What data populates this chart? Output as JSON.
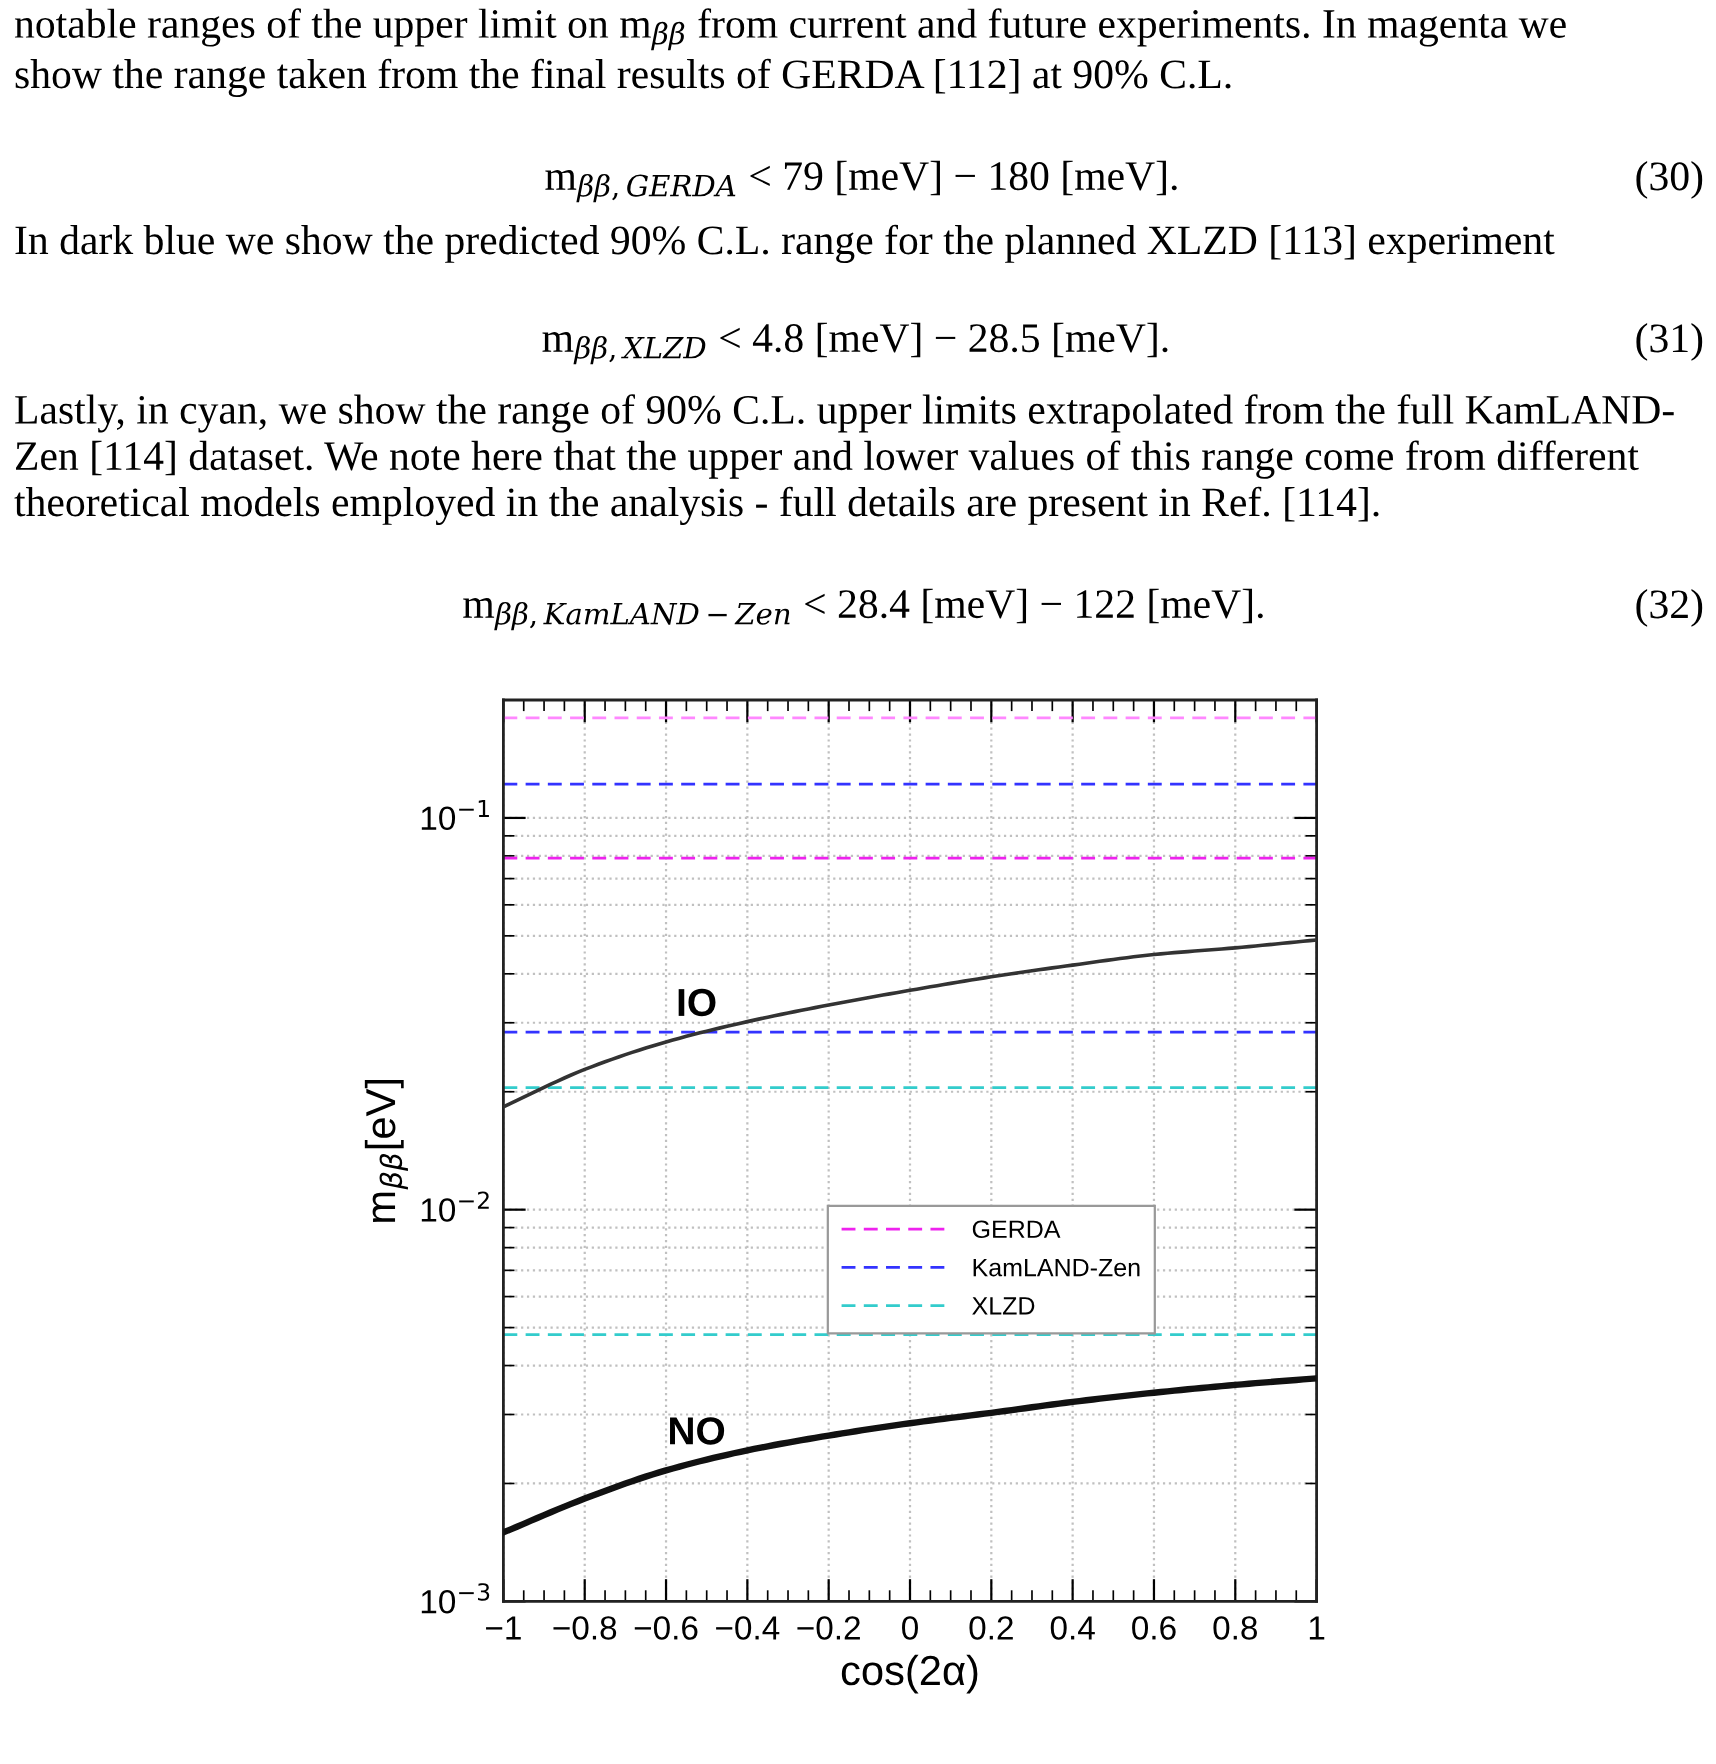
{
  "chart_data": {
    "type": "line",
    "xlabel": "cos(2α)",
    "ylabel": "m$_{ββ}$[eV]",
    "x": [
      -1,
      -0.8,
      -0.6,
      -0.4,
      -0.2,
      0,
      0.2,
      0.4,
      0.6,
      0.8,
      1
    ],
    "series": [
      {
        "name": "IO",
        "color": "#333333",
        "values": [
          0.0183,
          0.0228,
          0.0268,
          0.0302,
          0.0333,
          0.0363,
          0.0393,
          0.0421,
          0.0448,
          0.0466,
          0.0488
        ]
      },
      {
        "name": "NO",
        "color": "#111111",
        "values": [
          0.0015,
          0.00183,
          0.00216,
          0.00243,
          0.00265,
          0.00285,
          0.00303,
          0.00323,
          0.00341,
          0.00357,
          0.00371
        ]
      }
    ],
    "log": "y",
    "xlim": [
      -1,
      1
    ],
    "ylim": [
      0.001,
      0.2
    ],
    "xticks": [
      {
        "value": -1,
        "label": "−1"
      },
      {
        "value": -0.8,
        "label": "−0.8"
      },
      {
        "value": -0.6,
        "label": "−0.6"
      },
      {
        "value": -0.4,
        "label": "−0.4"
      },
      {
        "value": -0.2,
        "label": "−0.2"
      },
      0,
      0.2,
      0.4,
      0.6,
      0.8,
      1
    ],
    "yticks": [
      {
        "value": 0.001,
        "label": "10$^{−3}$"
      },
      {
        "value": 0.01,
        "label": "10$^{−2}$"
      },
      {
        "value": 0.1,
        "label": "10$^{−1}$"
      }
    ],
    "ref_lines": [
      {
        "axis": "y",
        "value": 0.079,
        "label": "GERDA",
        "color": "#ee22ee",
        "line_style": "dashed"
      },
      {
        "axis": "y",
        "value": 0.18,
        "color": "#ff88ff",
        "line_style": "dashed"
      },
      {
        "axis": "y",
        "value": 0.0284,
        "label": "KamLAND-Zen",
        "color": "#3333ff",
        "line_style": "dashed"
      },
      {
        "axis": "y",
        "value": 0.122,
        "color": "#3333ff",
        "line_style": "dashed"
      },
      {
        "axis": "y",
        "value": 0.0048,
        "label": "XLZD",
        "color": "#33cccc",
        "line_style": "dashed"
      },
      {
        "axis": "y",
        "value": 0.0205,
        "color": "#33cccc",
        "line_style": "dashed"
      }
    ],
    "grid": true,
    "legend": "center",
    "annotations": [
      "notable ranges of the upper limit on m$_{ββ}$ from current and future experiments. In magenta we\nshow the range taken from the final results of GERDA [112] at 90% C.L.",
      "m$_{ββ,GERDA}$ < 79 [meV] − 180 [meV].",
      "(30)",
      "In dark blue we show the predicted 90% C.L. range for the planned XLZD [113] experiment",
      "m$_{ββ,XLZD}$ < 4.8 [meV] − 28.5 [meV].",
      "(31)",
      "Lastly, in cyan, we show the range of 90% C.L. upper limits extrapolated from the full KamLAND-\nZen [114] dataset. We note here that the upper and lower values of this range come from different\ntheoretical models employed in the analysis - full details are present in Ref. [114].",
      "m$_{ββ,KamLAND−Zen}$ < 28.4 [meV] − 122 [meV].",
      "(32)"
    ]
  }
}
